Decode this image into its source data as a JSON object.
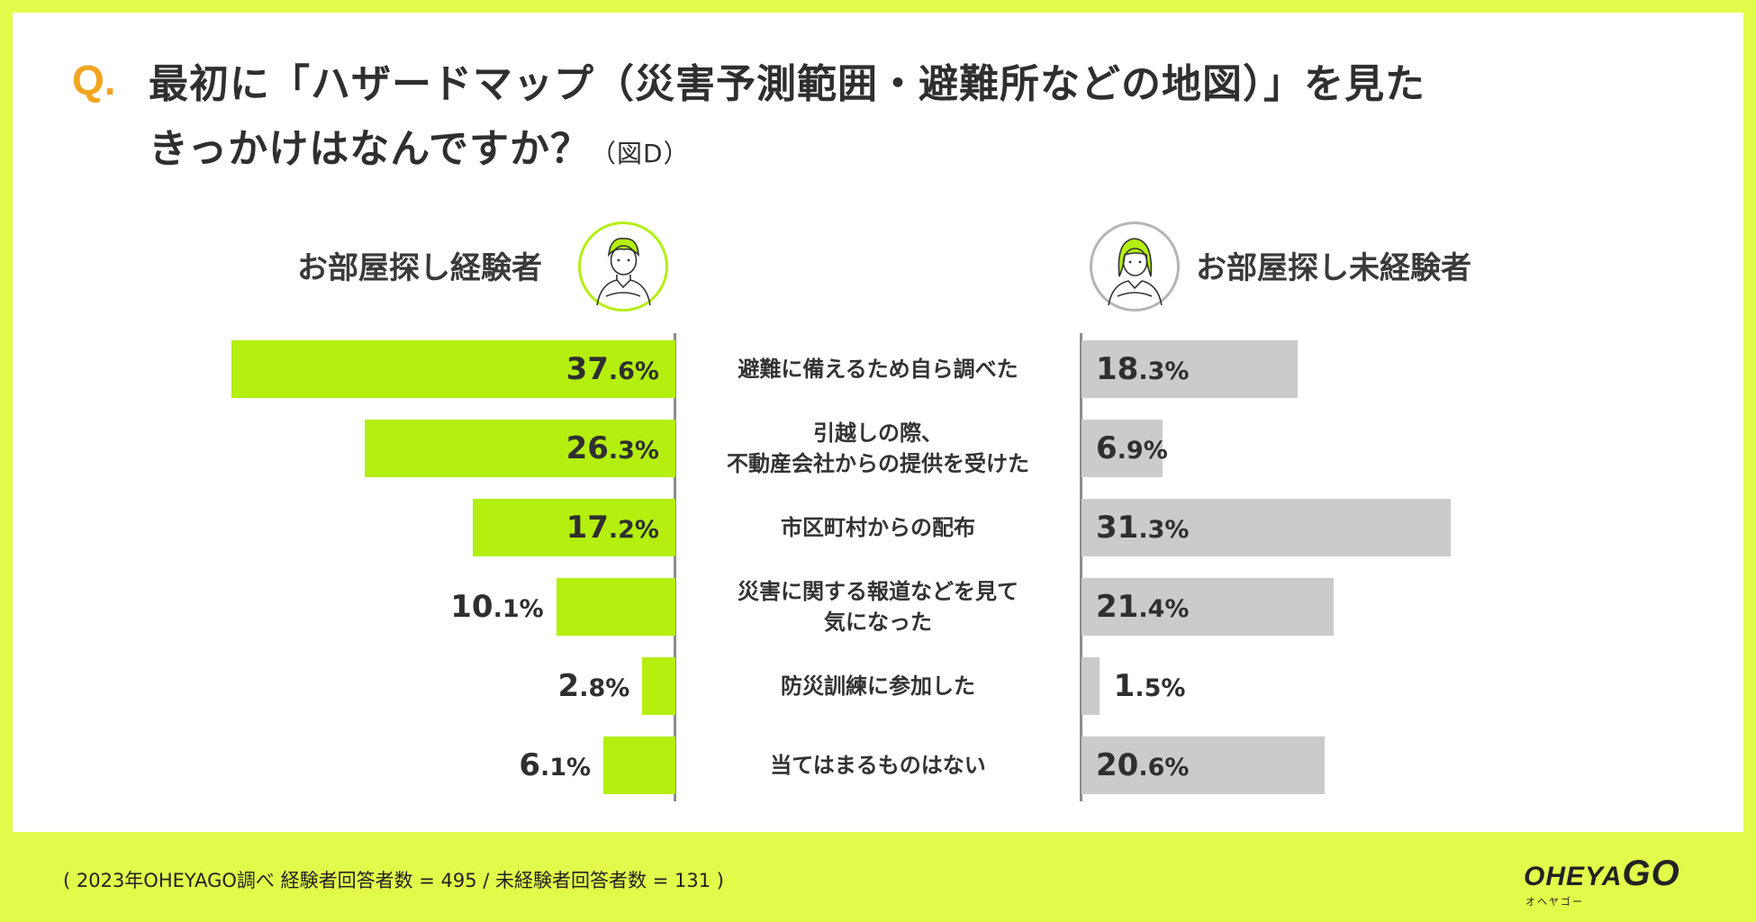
{
  "header": {
    "q_mark": "Q.",
    "title_line1": "最初に「ハザードマップ（災害予測範囲・避難所などの地図）」を見た",
    "title_line2": "きっかけはなんですか？",
    "figure_label": "（図D）"
  },
  "groups": {
    "left_label": "お部屋探し経験者",
    "right_label": "お部屋探し未経験者"
  },
  "colors": {
    "experienced": "#b4ef10",
    "inexperienced": "#cbcbcb",
    "background": "#e2fb4a"
  },
  "chart_data": {
    "type": "bar",
    "orientation": "horizontal-butterfly",
    "title": "最初に「ハザードマップ（災害予測範囲・避難所などの地図）」を見たきっかけはなんですか？",
    "unit": "%",
    "categories": [
      "避難に備えるため自ら調べた",
      "引越しの際、\n不動産会社からの提供を受けた",
      "市区町村からの配布",
      "災害に関する報道などを見て\n気になった",
      "防災訓練に参加した",
      "当てはまるものはない"
    ],
    "series": [
      {
        "name": "お部屋探し経験者",
        "values": [
          37.6,
          26.3,
          17.2,
          10.1,
          2.8,
          6.1
        ],
        "labels": [
          [
            "37",
            ".6%"
          ],
          [
            "26",
            ".3%"
          ],
          [
            "17",
            ".2%"
          ],
          [
            "10",
            ".1%"
          ],
          [
            "2",
            ".8%"
          ],
          [
            "6",
            ".1%"
          ]
        ]
      },
      {
        "name": "お部屋探し未経験者",
        "values": [
          18.3,
          6.9,
          31.3,
          21.4,
          1.5,
          20.6
        ],
        "labels": [
          [
            "18",
            ".3%"
          ],
          [
            "6",
            ".9%"
          ],
          [
            "31",
            ".3%"
          ],
          [
            "21",
            ".4%"
          ],
          [
            "1",
            ".5%"
          ],
          [
            "20",
            ".6%"
          ]
        ]
      }
    ]
  },
  "footer": {
    "note": "( 2023年OHEYAGO調べ 経験者回答者数 = 495 / 未経験者回答者数 = 131 )",
    "logo_main": "OHEYA",
    "logo_go": "GO",
    "logo_sub": "オヘヤゴー"
  }
}
